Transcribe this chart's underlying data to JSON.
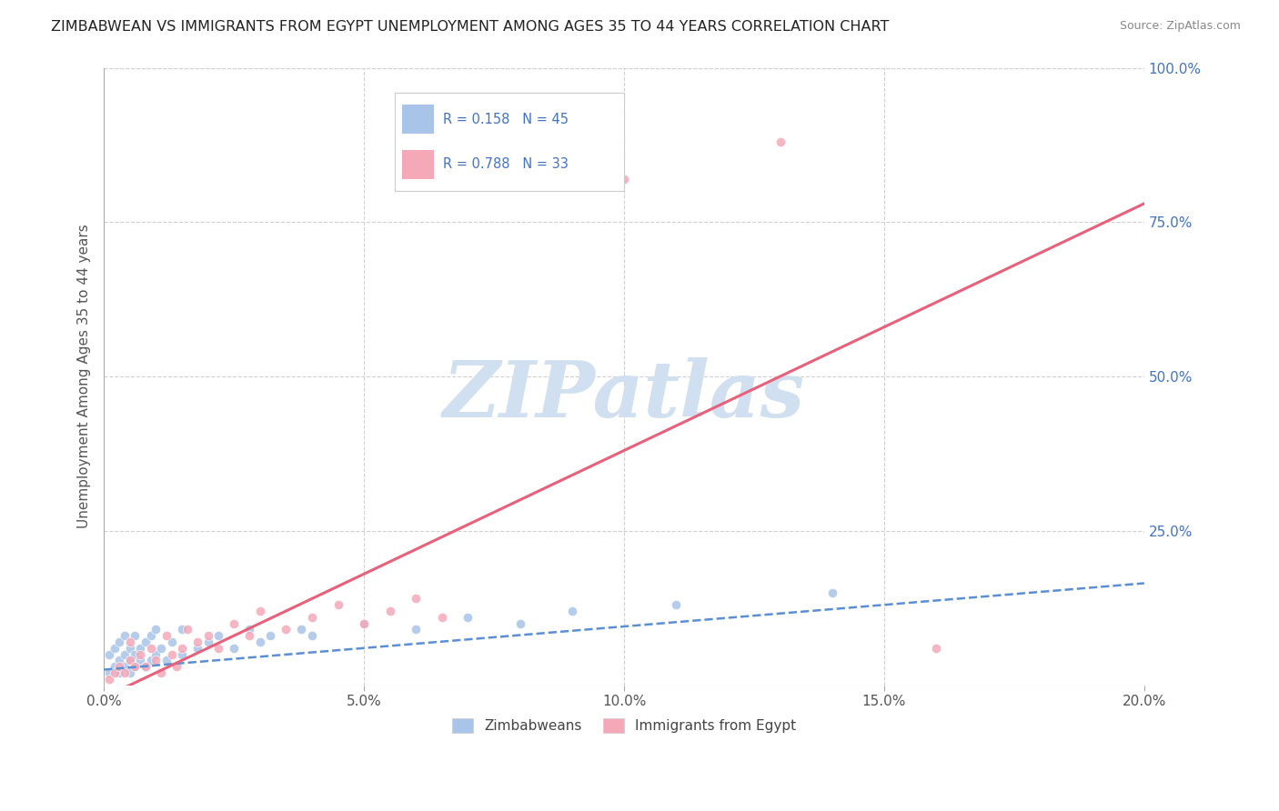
{
  "title": "ZIMBABWEAN VS IMMIGRANTS FROM EGYPT UNEMPLOYMENT AMONG AGES 35 TO 44 YEARS CORRELATION CHART",
  "source": "Source: ZipAtlas.com",
  "ylabel": "Unemployment Among Ages 35 to 44 years",
  "xlim": [
    0.0,
    0.2
  ],
  "ylim": [
    0.0,
    1.0
  ],
  "xtick_labels": [
    "0.0%",
    "5.0%",
    "10.0%",
    "15.0%",
    "20.0%"
  ],
  "xtick_vals": [
    0.0,
    0.05,
    0.1,
    0.15,
    0.2
  ],
  "ytick_right_labels": [
    "100.0%",
    "75.0%",
    "50.0%",
    "25.0%"
  ],
  "ytick_right_vals": [
    1.0,
    0.75,
    0.5,
    0.25
  ],
  "zim_R": 0.158,
  "zim_N": 45,
  "egypt_R": 0.788,
  "egypt_N": 33,
  "zim_color": "#a8c4e8",
  "egypt_color": "#f4a8b8",
  "zim_line_color": "#5b8fd4",
  "egypt_line_color": "#e8607a",
  "watermark": "ZIPatlas",
  "watermark_color": "#d0e0f0",
  "legend_label_zim": "Zimbabweans",
  "legend_label_egypt": "Immigrants from Egypt",
  "grid_color": "#d0d0d0",
  "background_color": "#ffffff",
  "zim_x": [
    0.001,
    0.001,
    0.002,
    0.002,
    0.003,
    0.003,
    0.003,
    0.004,
    0.004,
    0.004,
    0.005,
    0.005,
    0.005,
    0.006,
    0.006,
    0.006,
    0.007,
    0.007,
    0.008,
    0.008,
    0.009,
    0.009,
    0.01,
    0.01,
    0.011,
    0.012,
    0.013,
    0.015,
    0.015,
    0.018,
    0.02,
    0.022,
    0.025,
    0.028,
    0.03,
    0.032,
    0.038,
    0.04,
    0.05,
    0.06,
    0.07,
    0.08,
    0.09,
    0.11,
    0.14
  ],
  "zim_y": [
    0.02,
    0.05,
    0.03,
    0.06,
    0.02,
    0.04,
    0.07,
    0.03,
    0.05,
    0.08,
    0.02,
    0.04,
    0.06,
    0.03,
    0.05,
    0.08,
    0.04,
    0.06,
    0.03,
    0.07,
    0.04,
    0.08,
    0.05,
    0.09,
    0.06,
    0.04,
    0.07,
    0.05,
    0.09,
    0.06,
    0.07,
    0.08,
    0.06,
    0.09,
    0.07,
    0.08,
    0.09,
    0.08,
    0.1,
    0.09,
    0.11,
    0.1,
    0.12,
    0.13,
    0.15
  ],
  "egypt_x": [
    0.001,
    0.002,
    0.003,
    0.004,
    0.005,
    0.005,
    0.006,
    0.007,
    0.008,
    0.009,
    0.01,
    0.011,
    0.012,
    0.013,
    0.014,
    0.015,
    0.016,
    0.018,
    0.02,
    0.022,
    0.025,
    0.028,
    0.03,
    0.035,
    0.04,
    0.045,
    0.05,
    0.055,
    0.06,
    0.065,
    0.1,
    0.13,
    0.16
  ],
  "egypt_y": [
    0.01,
    0.02,
    0.03,
    0.02,
    0.04,
    0.07,
    0.03,
    0.05,
    0.03,
    0.06,
    0.04,
    0.02,
    0.08,
    0.05,
    0.03,
    0.06,
    0.09,
    0.07,
    0.08,
    0.06,
    0.1,
    0.08,
    0.12,
    0.09,
    0.11,
    0.13,
    0.1,
    0.12,
    0.14,
    0.11,
    0.82,
    0.88,
    0.06
  ],
  "zim_trend_x": [
    0.0,
    0.2
  ],
  "zim_trend_y": [
    0.025,
    0.165
  ],
  "egypt_trend_x": [
    0.0,
    0.2
  ],
  "egypt_trend_y": [
    -0.02,
    0.78
  ]
}
